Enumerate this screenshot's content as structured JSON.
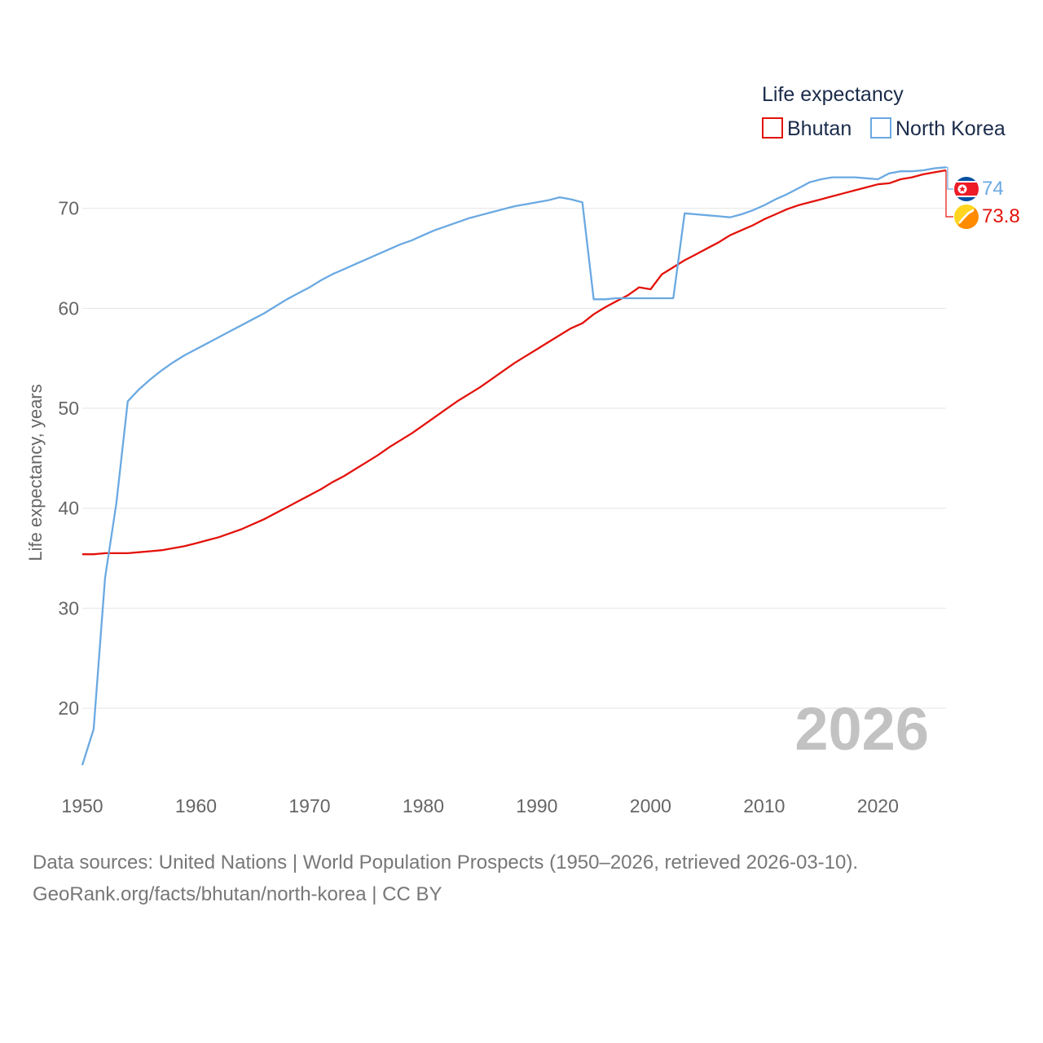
{
  "chart_data": {
    "type": "line",
    "ylabel": "Life expectancy, years",
    "xlim": [
      1950,
      2026
    ],
    "ylim": [
      13,
      76
    ],
    "yticks": [
      20,
      30,
      40,
      50,
      60,
      70
    ],
    "xticks": [
      1950,
      1960,
      1970,
      1980,
      1990,
      2000,
      2010,
      2020
    ],
    "legend_title": "Life expectancy",
    "current_year": "2026",
    "series": [
      {
        "name": "Bhutan",
        "color": "#e3120b",
        "end_label": "73.8",
        "flag": "bhutan-flag-icon",
        "points": [
          [
            1950,
            35.4
          ],
          [
            1951,
            35.4
          ],
          [
            1952,
            35.5
          ],
          [
            1953,
            35.5
          ],
          [
            1954,
            35.5
          ],
          [
            1955,
            35.6
          ],
          [
            1956,
            35.7
          ],
          [
            1957,
            35.8
          ],
          [
            1958,
            36.0
          ],
          [
            1959,
            36.2
          ],
          [
            1960,
            36.5
          ],
          [
            1961,
            36.8
          ],
          [
            1962,
            37.1
          ],
          [
            1963,
            37.5
          ],
          [
            1964,
            37.9
          ],
          [
            1965,
            38.4
          ],
          [
            1966,
            38.9
          ],
          [
            1967,
            39.5
          ],
          [
            1968,
            40.1
          ],
          [
            1969,
            40.7
          ],
          [
            1970,
            41.3
          ],
          [
            1971,
            41.9
          ],
          [
            1972,
            42.6
          ],
          [
            1973,
            43.2
          ],
          [
            1974,
            43.9
          ],
          [
            1975,
            44.6
          ],
          [
            1976,
            45.3
          ],
          [
            1977,
            46.1
          ],
          [
            1978,
            46.8
          ],
          [
            1979,
            47.5
          ],
          [
            1980,
            48.3
          ],
          [
            1981,
            49.1
          ],
          [
            1982,
            49.9
          ],
          [
            1983,
            50.7
          ],
          [
            1984,
            51.4
          ],
          [
            1985,
            52.1
          ],
          [
            1986,
            52.9
          ],
          [
            1987,
            53.7
          ],
          [
            1988,
            54.5
          ],
          [
            1989,
            55.2
          ],
          [
            1990,
            55.9
          ],
          [
            1991,
            56.6
          ],
          [
            1992,
            57.3
          ],
          [
            1993,
            58.0
          ],
          [
            1994,
            58.5
          ],
          [
            1995,
            59.4
          ],
          [
            1996,
            60.1
          ],
          [
            1997,
            60.7
          ],
          [
            1998,
            61.3
          ],
          [
            1999,
            62.1
          ],
          [
            2000,
            61.9
          ],
          [
            2001,
            63.4
          ],
          [
            2002,
            64.1
          ],
          [
            2003,
            64.8
          ],
          [
            2004,
            65.4
          ],
          [
            2005,
            66.0
          ],
          [
            2006,
            66.6
          ],
          [
            2007,
            67.3
          ],
          [
            2008,
            67.8
          ],
          [
            2009,
            68.3
          ],
          [
            2010,
            68.9
          ],
          [
            2011,
            69.4
          ],
          [
            2012,
            69.9
          ],
          [
            2013,
            70.3
          ],
          [
            2014,
            70.6
          ],
          [
            2015,
            70.9
          ],
          [
            2016,
            71.2
          ],
          [
            2017,
            71.5
          ],
          [
            2018,
            71.8
          ],
          [
            2019,
            72.1
          ],
          [
            2020,
            72.4
          ],
          [
            2021,
            72.5
          ],
          [
            2022,
            72.9
          ],
          [
            2023,
            73.1
          ],
          [
            2024,
            73.4
          ],
          [
            2025,
            73.6
          ],
          [
            2026,
            73.8
          ]
        ]
      },
      {
        "name": "North Korea",
        "color": "#6aa9e2",
        "end_label": "74",
        "flag": "north-korea-flag-icon",
        "points": [
          [
            1950,
            14.3
          ],
          [
            1951,
            17.9
          ],
          [
            1952,
            33.0
          ],
          [
            1953,
            40.5
          ],
          [
            1954,
            50.7
          ],
          [
            1955,
            51.9
          ],
          [
            1956,
            52.9
          ],
          [
            1957,
            53.8
          ],
          [
            1958,
            54.6
          ],
          [
            1959,
            55.3
          ],
          [
            1960,
            55.9
          ],
          [
            1961,
            56.5
          ],
          [
            1962,
            57.1
          ],
          [
            1963,
            57.7
          ],
          [
            1964,
            58.3
          ],
          [
            1965,
            58.9
          ],
          [
            1966,
            59.5
          ],
          [
            1967,
            60.2
          ],
          [
            1968,
            60.9
          ],
          [
            1969,
            61.5
          ],
          [
            1970,
            62.1
          ],
          [
            1971,
            62.8
          ],
          [
            1972,
            63.4
          ],
          [
            1973,
            63.9
          ],
          [
            1974,
            64.4
          ],
          [
            1975,
            64.9
          ],
          [
            1976,
            65.4
          ],
          [
            1977,
            65.9
          ],
          [
            1978,
            66.4
          ],
          [
            1979,
            66.8
          ],
          [
            1980,
            67.3
          ],
          [
            1981,
            67.8
          ],
          [
            1982,
            68.2
          ],
          [
            1983,
            68.6
          ],
          [
            1984,
            69.0
          ],
          [
            1985,
            69.3
          ],
          [
            1986,
            69.6
          ],
          [
            1987,
            69.9
          ],
          [
            1988,
            70.2
          ],
          [
            1989,
            70.4
          ],
          [
            1990,
            70.6
          ],
          [
            1991,
            70.8
          ],
          [
            1992,
            71.1
          ],
          [
            1993,
            70.9
          ],
          [
            1994,
            70.6
          ],
          [
            1995,
            60.9
          ],
          [
            1996,
            60.9
          ],
          [
            1997,
            61.0
          ],
          [
            1998,
            61.0
          ],
          [
            1999,
            61.0
          ],
          [
            2000,
            61.0
          ],
          [
            2001,
            61.0
          ],
          [
            2002,
            61.0
          ],
          [
            2003,
            69.5
          ],
          [
            2004,
            69.4
          ],
          [
            2005,
            69.3
          ],
          [
            2006,
            69.2
          ],
          [
            2007,
            69.1
          ],
          [
            2008,
            69.4
          ],
          [
            2009,
            69.8
          ],
          [
            2010,
            70.3
          ],
          [
            2011,
            70.9
          ],
          [
            2012,
            71.4
          ],
          [
            2013,
            72.0
          ],
          [
            2014,
            72.6
          ],
          [
            2015,
            72.9
          ],
          [
            2016,
            73.1
          ],
          [
            2017,
            73.1
          ],
          [
            2018,
            73.1
          ],
          [
            2019,
            73.0
          ],
          [
            2020,
            72.9
          ],
          [
            2021,
            73.5
          ],
          [
            2022,
            73.7
          ],
          [
            2023,
            73.7
          ],
          [
            2024,
            73.8
          ],
          [
            2025,
            74.0
          ],
          [
            2026,
            74.1
          ]
        ]
      }
    ]
  },
  "source": {
    "line1": "Data sources: United Nations | World Population Prospects (1950–2026, retrieved 2026-03-10).",
    "line2": "GeoRank.org/facts/bhutan/north-korea | CC BY"
  }
}
